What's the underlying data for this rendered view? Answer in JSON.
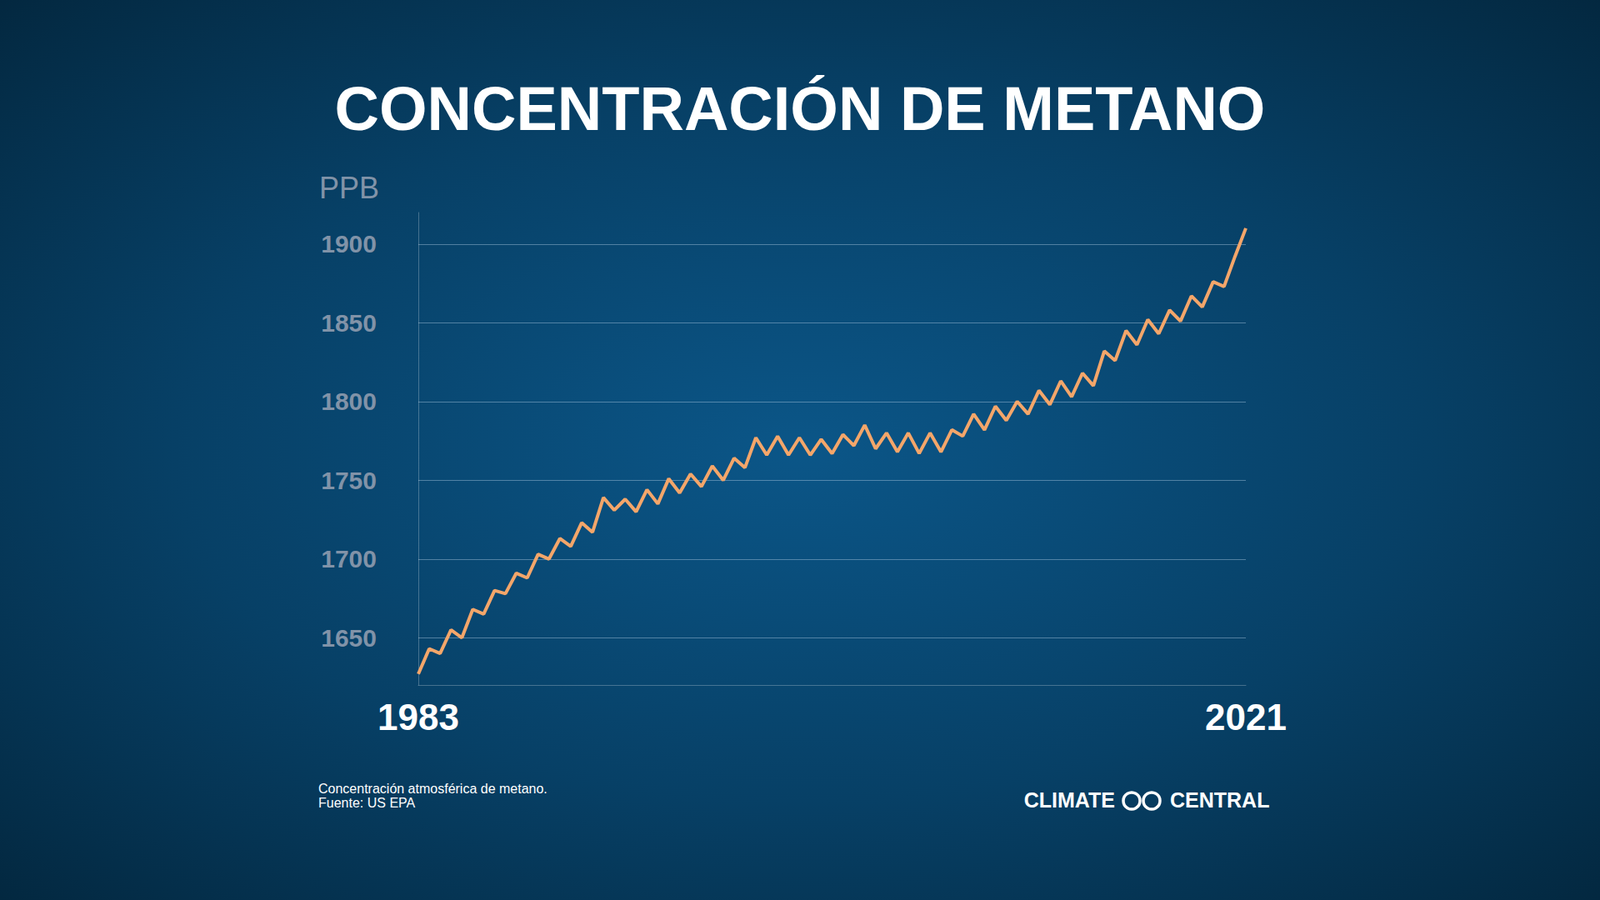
{
  "chart_data": {
    "type": "line",
    "title": "CONCENTRACIÓN DE METANO",
    "ylabel": "PPB",
    "notes": [
      "Concentración atmosférica de metano.",
      "Fuente: US EPA"
    ],
    "brand": "CLIMATE CENTRAL",
    "color": "#f4a66a",
    "grid": true,
    "x": [
      1983.0,
      1983.5,
      1984.0,
      1984.5,
      1985.0,
      1985.5,
      1986.0,
      1986.5,
      1987.0,
      1987.5,
      1988.0,
      1988.5,
      1989.0,
      1989.5,
      1990.0,
      1990.5,
      1991.0,
      1991.5,
      1992.0,
      1992.5,
      1993.0,
      1993.5,
      1994.0,
      1994.5,
      1995.0,
      1995.5,
      1996.0,
      1996.5,
      1997.0,
      1997.5,
      1998.0,
      1998.5,
      1999.0,
      1999.5,
      2000.0,
      2000.5,
      2001.0,
      2001.5,
      2002.0,
      2002.5,
      2003.0,
      2003.5,
      2004.0,
      2004.5,
      2005.0,
      2005.5,
      2006.0,
      2006.5,
      2007.0,
      2007.5,
      2008.0,
      2008.5,
      2009.0,
      2009.5,
      2010.0,
      2010.5,
      2011.0,
      2011.5,
      2012.0,
      2012.5,
      2013.0,
      2013.5,
      2014.0,
      2014.5,
      2015.0,
      2015.5,
      2016.0,
      2016.5,
      2017.0,
      2017.5,
      2018.0,
      2018.5,
      2019.0,
      2019.5,
      2020.0,
      2020.5,
      2021.0
    ],
    "values": [
      1627,
      1643,
      1640,
      1655,
      1650,
      1668,
      1665,
      1680,
      1678,
      1691,
      1688,
      1703,
      1700,
      1713,
      1708,
      1723,
      1717,
      1739,
      1731,
      1738,
      1730,
      1744,
      1735,
      1751,
      1742,
      1754,
      1746,
      1759,
      1750,
      1764,
      1758,
      1777,
      1766,
      1778,
      1766,
      1777,
      1766,
      1776,
      1767,
      1779,
      1772,
      1785,
      1770,
      1780,
      1768,
      1780,
      1767,
      1780,
      1768,
      1782,
      1778,
      1792,
      1782,
      1797,
      1788,
      1800,
      1792,
      1807,
      1798,
      1813,
      1803,
      1818,
      1810,
      1832,
      1826,
      1845,
      1836,
      1852,
      1843,
      1858,
      1851,
      1867,
      1860,
      1876,
      1873,
      1892,
      1910
    ],
    "xlim": [
      1983,
      2021
    ],
    "xticks": [
      1983,
      2021
    ],
    "ylim": [
      1620,
      1920
    ],
    "yticks": [
      1650,
      1700,
      1750,
      1800,
      1850,
      1900
    ]
  }
}
